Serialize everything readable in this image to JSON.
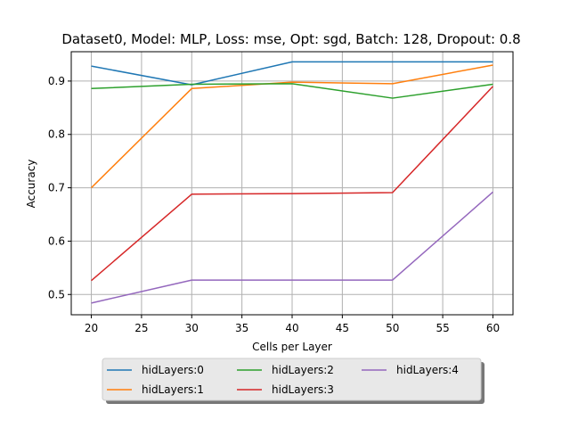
{
  "chart_data": {
    "type": "line",
    "title": "Dataset0, Model: MLP, Loss: mse, Opt: sgd, Batch: 128, Dropout: 0.8",
    "xlabel": "Cells per Layer",
    "ylabel": "Accuracy",
    "xlim": [
      18,
      62
    ],
    "ylim": [
      0.462,
      0.955
    ],
    "xticks": [
      20,
      25,
      30,
      35,
      40,
      45,
      50,
      55,
      60
    ],
    "yticks": [
      0.5,
      0.6,
      0.7,
      0.8,
      0.9
    ],
    "grid": true,
    "legend_position": "bottom-center",
    "x": [
      20,
      30,
      40,
      50,
      60
    ],
    "series": [
      {
        "name": "hidLayers:0",
        "color": "#1f77b4",
        "values": [
          0.928,
          0.893,
          0.936,
          0.936,
          0.936
        ]
      },
      {
        "name": "hidLayers:1",
        "color": "#ff7f0e",
        "values": [
          0.7,
          0.886,
          0.898,
          0.895,
          0.93
        ]
      },
      {
        "name": "hidLayers:2",
        "color": "#2ca02c",
        "values": [
          0.886,
          0.894,
          0.895,
          0.868,
          0.894
        ]
      },
      {
        "name": "hidLayers:3",
        "color": "#d62728",
        "values": [
          0.526,
          0.688,
          0.689,
          0.691,
          0.89
        ]
      },
      {
        "name": "hidLayers:4",
        "color": "#9467bd",
        "values": [
          0.484,
          0.527,
          0.527,
          0.527,
          0.692
        ]
      }
    ]
  }
}
